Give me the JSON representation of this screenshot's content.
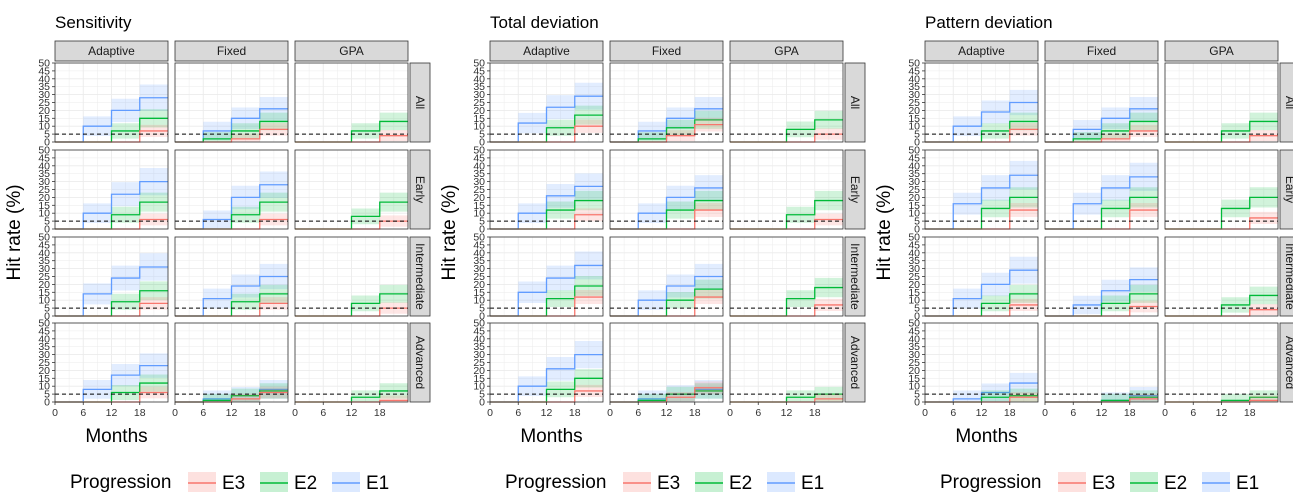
{
  "figure": {
    "x_label": "Months",
    "y_label": "Hit rate (%)",
    "legend_title": "Progression",
    "reference_line": 5
  },
  "series_styles": [
    {
      "name": "E3",
      "color": "#F8766D"
    },
    {
      "name": "E2",
      "color": "#00BA38"
    },
    {
      "name": "E1",
      "color": "#619CFF"
    }
  ],
  "chart_data": [
    {
      "type": "step",
      "title": "Sensitivity",
      "columns": [
        "Adaptive",
        "Fixed",
        "GPA"
      ],
      "rows": [
        "All",
        "Early",
        "Intermediate",
        "Advanced"
      ],
      "xlabel": "Months",
      "ylabel": "Hit rate (%)",
      "x_ticks": [
        0,
        6,
        12,
        18
      ],
      "y_ticks": [
        0,
        5,
        10,
        15,
        20,
        25,
        30,
        35,
        40,
        45,
        50
      ],
      "xlim": [
        0,
        24
      ],
      "ylim": [
        0,
        50
      ],
      "step_x": [
        0,
        6,
        12,
        18,
        24
      ],
      "legend": "bottom",
      "grid": true,
      "reference_line_y": 5,
      "panels": [
        {
          "row": "All",
          "col": "Adaptive",
          "E1": [
            0,
            10,
            20,
            28
          ],
          "E2": [
            0,
            0,
            7,
            15
          ],
          "E3": [
            0,
            0,
            0,
            7
          ]
        },
        {
          "row": "All",
          "col": "Fixed",
          "E1": [
            0,
            7,
            15,
            21
          ],
          "E2": [
            0,
            2,
            7,
            13
          ],
          "E3": [
            0,
            0,
            2,
            8
          ]
        },
        {
          "row": "All",
          "col": "GPA",
          "E1": null,
          "E2": [
            0,
            0,
            7,
            13
          ],
          "E3": [
            0,
            0,
            0,
            4
          ]
        },
        {
          "row": "Early",
          "col": "Adaptive",
          "E1": [
            0,
            10,
            22,
            30
          ],
          "E2": [
            0,
            0,
            9,
            17
          ],
          "E3": [
            0,
            0,
            0,
            6
          ]
        },
        {
          "row": "Early",
          "col": "Fixed",
          "E1": [
            0,
            6,
            20,
            28
          ],
          "E2": [
            0,
            0,
            9,
            17
          ],
          "E3": [
            0,
            0,
            0,
            6
          ]
        },
        {
          "row": "Early",
          "col": "GPA",
          "E1": null,
          "E2": [
            0,
            0,
            8,
            17
          ],
          "E3": [
            0,
            0,
            0,
            5
          ]
        },
        {
          "row": "Intermediate",
          "col": "Adaptive",
          "E1": [
            0,
            14,
            24,
            31
          ],
          "E2": [
            0,
            0,
            9,
            16
          ],
          "E3": [
            0,
            0,
            0,
            8
          ]
        },
        {
          "row": "Intermediate",
          "col": "Fixed",
          "E1": [
            0,
            11,
            19,
            25
          ],
          "E2": [
            0,
            0,
            9,
            14
          ],
          "E3": [
            0,
            0,
            0,
            8
          ]
        },
        {
          "row": "Intermediate",
          "col": "GPA",
          "E1": null,
          "E2": [
            0,
            0,
            8,
            14
          ],
          "E3": [
            0,
            0,
            0,
            5
          ]
        },
        {
          "row": "Advanced",
          "col": "Adaptive",
          "E1": [
            0,
            8,
            17,
            23
          ],
          "E2": [
            0,
            0,
            6,
            12
          ],
          "E3": [
            0,
            0,
            0,
            6
          ]
        },
        {
          "row": "Advanced",
          "col": "Fixed",
          "E1": [
            0,
            2,
            4,
            8
          ],
          "E2": [
            0,
            1,
            4,
            7
          ],
          "E3": [
            0,
            0,
            2,
            6
          ]
        },
        {
          "row": "Advanced",
          "col": "GPA",
          "E1": null,
          "E2": [
            0,
            0,
            3,
            7
          ],
          "E3": [
            0,
            0,
            0,
            1
          ]
        }
      ]
    },
    {
      "type": "step",
      "title": "Total deviation",
      "columns": [
        "Adaptive",
        "Fixed",
        "GPA"
      ],
      "rows": [
        "All",
        "Early",
        "Intermediate",
        "Advanced"
      ],
      "xlabel": "Months",
      "ylabel": "Hit rate (%)",
      "x_ticks": [
        0,
        6,
        12,
        18
      ],
      "y_ticks": [
        0,
        5,
        10,
        15,
        20,
        25,
        30,
        35,
        40,
        45,
        50
      ],
      "xlim": [
        0,
        24
      ],
      "ylim": [
        0,
        50
      ],
      "step_x": [
        0,
        6,
        12,
        18,
        24
      ],
      "legend": "bottom",
      "grid": true,
      "reference_line_y": 5,
      "panels": [
        {
          "row": "All",
          "col": "Adaptive",
          "E1": [
            0,
            12,
            22,
            29
          ],
          "E2": [
            0,
            0,
            9,
            17
          ],
          "E3": [
            0,
            0,
            0,
            10
          ]
        },
        {
          "row": "All",
          "col": "Fixed",
          "E1": [
            0,
            7,
            15,
            21
          ],
          "E2": [
            0,
            2,
            9,
            14
          ],
          "E3": [
            0,
            0,
            4,
            11
          ]
        },
        {
          "row": "All",
          "col": "GPA",
          "E1": null,
          "E2": [
            0,
            0,
            8,
            14
          ],
          "E3": [
            0,
            0,
            0,
            5
          ]
        },
        {
          "row": "Early",
          "col": "Adaptive",
          "E1": [
            0,
            10,
            21,
            27
          ],
          "E2": [
            0,
            0,
            12,
            18
          ],
          "E3": [
            0,
            0,
            0,
            9
          ]
        },
        {
          "row": "Early",
          "col": "Fixed",
          "E1": [
            0,
            10,
            20,
            26
          ],
          "E2": [
            0,
            0,
            12,
            18
          ],
          "E3": [
            0,
            0,
            0,
            12
          ]
        },
        {
          "row": "Early",
          "col": "GPA",
          "E1": null,
          "E2": [
            0,
            0,
            9,
            18
          ],
          "E3": [
            0,
            0,
            0,
            6
          ]
        },
        {
          "row": "Intermediate",
          "col": "Adaptive",
          "E1": [
            0,
            15,
            24,
            32
          ],
          "E2": [
            0,
            0,
            11,
            19
          ],
          "E3": [
            0,
            0,
            0,
            12
          ]
        },
        {
          "row": "Intermediate",
          "col": "Fixed",
          "E1": [
            0,
            10,
            19,
            25
          ],
          "E2": [
            0,
            0,
            10,
            17
          ],
          "E3": [
            0,
            0,
            0,
            12
          ]
        },
        {
          "row": "Intermediate",
          "col": "GPA",
          "E1": null,
          "E2": [
            0,
            0,
            11,
            18
          ],
          "E3": [
            0,
            0,
            0,
            7
          ]
        },
        {
          "row": "Advanced",
          "col": "Adaptive",
          "E1": [
            0,
            10,
            21,
            30
          ],
          "E2": [
            0,
            0,
            8,
            15
          ],
          "E3": [
            0,
            0,
            0,
            7
          ]
        },
        {
          "row": "Advanced",
          "col": "Fixed",
          "E1": [
            0,
            2,
            5,
            8
          ],
          "E2": [
            0,
            1,
            5,
            7
          ],
          "E3": [
            0,
            0,
            3,
            9
          ]
        },
        {
          "row": "Advanced",
          "col": "GPA",
          "E1": null,
          "E2": [
            0,
            0,
            3,
            5
          ],
          "E3": [
            0,
            0,
            0,
            2
          ]
        }
      ]
    },
    {
      "type": "step",
      "title": "Pattern deviation",
      "columns": [
        "Adaptive",
        "Fixed",
        "GPA"
      ],
      "rows": [
        "All",
        "Early",
        "Intermediate",
        "Advanced"
      ],
      "xlabel": "Months",
      "ylabel": "Hit rate (%)",
      "x_ticks": [
        0,
        6,
        12,
        18
      ],
      "y_ticks": [
        0,
        5,
        10,
        15,
        20,
        25,
        30,
        35,
        40,
        45,
        50
      ],
      "xlim": [
        0,
        24
      ],
      "ylim": [
        0,
        50
      ],
      "step_x": [
        0,
        6,
        12,
        18,
        24
      ],
      "legend": "bottom",
      "grid": true,
      "reference_line_y": 5,
      "panels": [
        {
          "row": "All",
          "col": "Adaptive",
          "E1": [
            0,
            10,
            19,
            25
          ],
          "E2": [
            0,
            0,
            7,
            13
          ],
          "E3": [
            0,
            0,
            0,
            8
          ]
        },
        {
          "row": "All",
          "col": "Fixed",
          "E1": [
            0,
            8,
            15,
            21
          ],
          "E2": [
            0,
            2,
            7,
            13
          ],
          "E3": [
            0,
            0,
            2,
            7
          ]
        },
        {
          "row": "All",
          "col": "GPA",
          "E1": null,
          "E2": [
            0,
            0,
            7,
            13
          ],
          "E3": [
            0,
            0,
            0,
            4
          ]
        },
        {
          "row": "Early",
          "col": "Adaptive",
          "E1": [
            0,
            16,
            26,
            34
          ],
          "E2": [
            0,
            0,
            13,
            20
          ],
          "E3": [
            0,
            0,
            0,
            12
          ]
        },
        {
          "row": "Early",
          "col": "Fixed",
          "E1": [
            0,
            16,
            26,
            33
          ],
          "E2": [
            0,
            0,
            13,
            20
          ],
          "E3": [
            0,
            0,
            0,
            12
          ]
        },
        {
          "row": "Early",
          "col": "GPA",
          "E1": null,
          "E2": [
            0,
            0,
            13,
            20
          ],
          "E3": [
            0,
            0,
            0,
            7
          ]
        },
        {
          "row": "Intermediate",
          "col": "Adaptive",
          "E1": [
            0,
            11,
            20,
            29
          ],
          "E2": [
            0,
            0,
            8,
            14
          ],
          "E3": [
            0,
            0,
            0,
            7
          ]
        },
        {
          "row": "Intermediate",
          "col": "Fixed",
          "E1": [
            0,
            7,
            16,
            23
          ],
          "E2": [
            0,
            0,
            8,
            14
          ],
          "E3": [
            0,
            0,
            0,
            6
          ]
        },
        {
          "row": "Intermediate",
          "col": "GPA",
          "E1": null,
          "E2": [
            0,
            0,
            7,
            13
          ],
          "E3": [
            0,
            0,
            0,
            4
          ]
        },
        {
          "row": "Advanced",
          "col": "Adaptive",
          "E1": [
            0,
            2,
            6,
            12
          ],
          "E2": [
            0,
            0,
            3,
            4
          ],
          "E3": [
            0,
            0,
            0,
            3
          ]
        },
        {
          "row": "Advanced",
          "col": "Fixed",
          "E1": [
            0,
            0,
            1,
            4
          ],
          "E2": [
            0,
            0,
            1,
            3
          ],
          "E3": [
            0,
            0,
            0,
            2
          ]
        },
        {
          "row": "Advanced",
          "col": "GPA",
          "E1": null,
          "E2": [
            0,
            0,
            1,
            3
          ],
          "E3": [
            0,
            0,
            0,
            1
          ]
        }
      ]
    }
  ]
}
